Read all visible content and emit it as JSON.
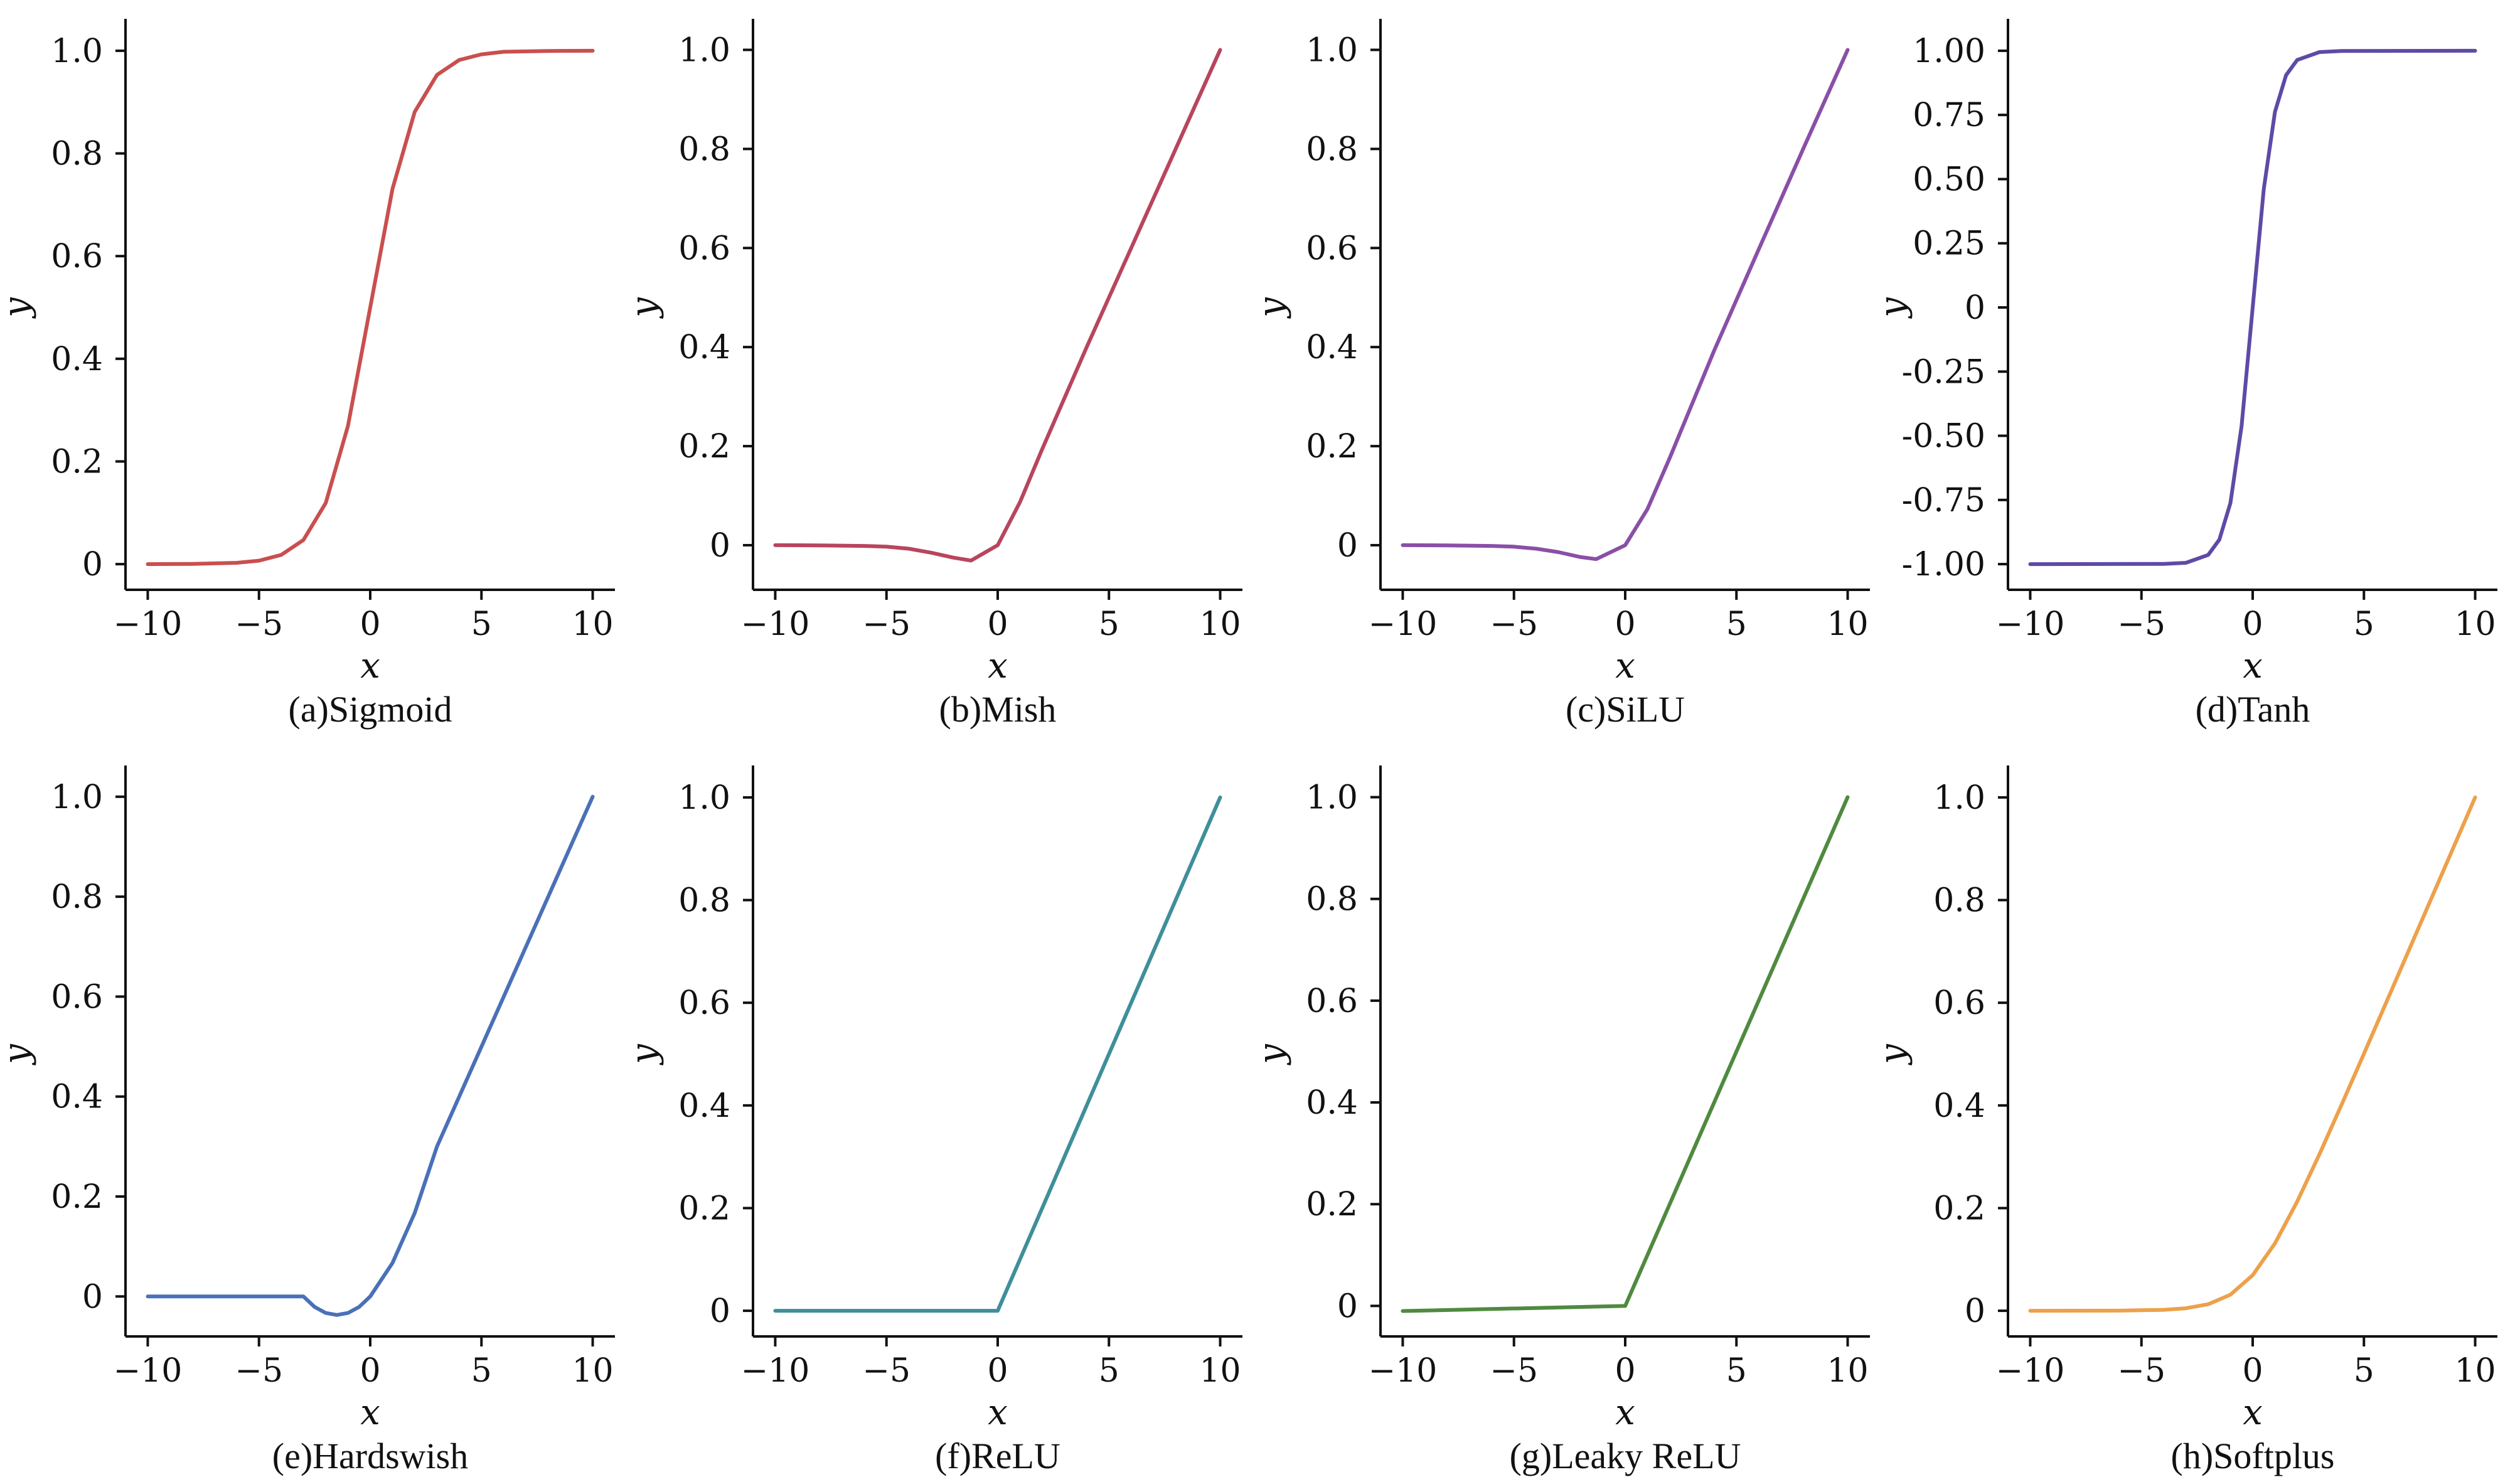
{
  "chart_data": [
    {
      "type": "line",
      "caption": "(a)Sigmoid",
      "color": "#c94f4f",
      "xlabel": "x",
      "ylabel": "y",
      "xlim": [
        -11,
        11
      ],
      "ylim": [
        -0.05,
        1.05
      ],
      "xticks": [
        -10,
        -5,
        0,
        5,
        10
      ],
      "xtick_labels": [
        "−10",
        "−5",
        "0",
        "5",
        "10"
      ],
      "yticks": [
        0,
        0.2,
        0.4,
        0.6,
        0.8,
        1.0
      ],
      "ytick_labels": [
        "0",
        "0.2",
        "0.4",
        "0.6",
        "0.8",
        "1.0"
      ],
      "series": [
        {
          "x": [
            -10,
            -8,
            -6,
            -5,
            -4,
            -3,
            -2,
            -1,
            0,
            1,
            2,
            3,
            4,
            5,
            6,
            8,
            10
          ],
          "y": [
            0.0,
            0.0003,
            0.0025,
            0.0067,
            0.018,
            0.047,
            0.119,
            0.269,
            0.5,
            0.731,
            0.881,
            0.953,
            0.982,
            0.993,
            0.998,
            0.9997,
            1.0
          ]
        }
      ]
    },
    {
      "type": "line",
      "caption": "(b)Mish",
      "color": "#b8455e",
      "xlabel": "x",
      "ylabel": "y",
      "xlim": [
        -11,
        11
      ],
      "ylim": [
        -0.09,
        1.05
      ],
      "xticks": [
        -10,
        -5,
        0,
        5,
        10
      ],
      "xtick_labels": [
        "−10",
        "−5",
        "0",
        "5",
        "10"
      ],
      "yticks": [
        0,
        0.2,
        0.4,
        0.6,
        0.8,
        1.0
      ],
      "ytick_labels": [
        "0",
        "0.2",
        "0.4",
        "0.6",
        "0.8",
        "1.0"
      ],
      "series": [
        {
          "x": [
            -10,
            -8,
            -6,
            -5,
            -4,
            -3,
            -2,
            -1.2,
            0,
            1,
            2,
            4,
            6,
            8,
            10
          ],
          "y": [
            0.0,
            -0.0003,
            -0.0015,
            -0.003,
            -0.007,
            -0.015,
            -0.025,
            -0.031,
            0.0,
            0.087,
            0.194,
            0.4,
            0.6,
            0.8,
            1.0
          ]
        }
      ]
    },
    {
      "type": "line",
      "caption": "(c)SiLU",
      "color": "#8a4fa6",
      "xlabel": "x",
      "ylabel": "y",
      "xlim": [
        -11,
        11
      ],
      "ylim": [
        -0.09,
        1.05
      ],
      "xticks": [
        -10,
        -5,
        0,
        5,
        10
      ],
      "xtick_labels": [
        "−10",
        "−5",
        "0",
        "5",
        "10"
      ],
      "yticks": [
        0,
        0.2,
        0.4,
        0.6,
        0.8,
        1.0
      ],
      "ytick_labels": [
        "0",
        "0.2",
        "0.4",
        "0.6",
        "0.8",
        "1.0"
      ],
      "series": [
        {
          "x": [
            -10,
            -8,
            -6,
            -5,
            -4,
            -3,
            -2,
            -1.3,
            0,
            1,
            2,
            4,
            6,
            8,
            10
          ],
          "y": [
            0.0,
            -0.0003,
            -0.0015,
            -0.003,
            -0.007,
            -0.014,
            -0.024,
            -0.028,
            0.0,
            0.073,
            0.176,
            0.393,
            0.597,
            0.8,
            1.0
          ]
        }
      ]
    },
    {
      "type": "line",
      "caption": "(d)Tanh",
      "color": "#5e4aa6",
      "xlabel": "x",
      "ylabel": "y",
      "xlim": [
        -11,
        11
      ],
      "ylim": [
        -1.1,
        1.1
      ],
      "xticks": [
        -10,
        -5,
        0,
        5,
        10
      ],
      "xtick_labels": [
        "−10",
        "−5",
        "0",
        "5",
        "10"
      ],
      "yticks": [
        -1.0,
        -0.75,
        -0.5,
        -0.25,
        0,
        0.25,
        0.5,
        0.75,
        1.0
      ],
      "ytick_labels": [
        "-1.00",
        "-0.75",
        "-0.50",
        "-0.25",
        "0",
        "0.25",
        "0.50",
        "0.75",
        "1.00"
      ],
      "series": [
        {
          "x": [
            -10,
            -4,
            -3,
            -2,
            -1.5,
            -1,
            -0.5,
            0,
            0.5,
            1,
            1.5,
            2,
            3,
            4,
            10
          ],
          "y": [
            -1.0,
            -0.999,
            -0.995,
            -0.964,
            -0.905,
            -0.762,
            -0.462,
            0.0,
            0.462,
            0.762,
            0.905,
            0.964,
            0.995,
            0.999,
            1.0
          ]
        }
      ]
    },
    {
      "type": "line",
      "caption": "(e)Hardswish",
      "color": "#4a70b8",
      "xlabel": "x",
      "ylabel": "y",
      "xlim": [
        -11,
        11
      ],
      "ylim": [
        -0.08,
        1.05
      ],
      "xticks": [
        -10,
        -5,
        0,
        5,
        10
      ],
      "xtick_labels": [
        "−10",
        "−5",
        "0",
        "5",
        "10"
      ],
      "yticks": [
        0,
        0.2,
        0.4,
        0.6,
        0.8,
        1.0
      ],
      "ytick_labels": [
        "0",
        "0.2",
        "0.4",
        "0.6",
        "0.8",
        "1.0"
      ],
      "series": [
        {
          "x": [
            -10,
            -3,
            -2.5,
            -2,
            -1.5,
            -1,
            -0.5,
            0,
            1,
            2,
            3,
            5,
            7,
            10
          ],
          "y": [
            0.0,
            0.0,
            -0.021,
            -0.033,
            -0.037,
            -0.033,
            -0.021,
            0.0,
            0.067,
            0.167,
            0.3,
            0.5,
            0.7,
            1.0
          ]
        }
      ]
    },
    {
      "type": "line",
      "caption": "(f)ReLU",
      "color": "#3f8f9a",
      "xlabel": "x",
      "ylabel": "y",
      "xlim": [
        -11,
        11
      ],
      "ylim": [
        -0.05,
        1.05
      ],
      "xticks": [
        -10,
        -5,
        0,
        5,
        10
      ],
      "xtick_labels": [
        "−10",
        "−5",
        "0",
        "5",
        "10"
      ],
      "yticks": [
        0,
        0.2,
        0.4,
        0.6,
        0.8,
        1.0
      ],
      "ytick_labels": [
        "0",
        "0.2",
        "0.4",
        "0.6",
        "0.8",
        "1.0"
      ],
      "series": [
        {
          "x": [
            -10,
            0,
            10
          ],
          "y": [
            0.0,
            0.0,
            1.0
          ]
        }
      ]
    },
    {
      "type": "line",
      "caption": "(g)Leaky ReLU",
      "color": "#4f8a3f",
      "xlabel": "x",
      "ylabel": "y",
      "xlim": [
        -11,
        11
      ],
      "ylim": [
        -0.06,
        1.05
      ],
      "xticks": [
        -10,
        -5,
        0,
        5,
        10
      ],
      "xtick_labels": [
        "−10",
        "−5",
        "0",
        "5",
        "10"
      ],
      "yticks": [
        0,
        0.2,
        0.4,
        0.6,
        0.8,
        1.0
      ],
      "ytick_labels": [
        "0",
        "0.2",
        "0.4",
        "0.6",
        "0.8",
        "1.0"
      ],
      "series": [
        {
          "x": [
            -10,
            0,
            10
          ],
          "y": [
            -0.01,
            0.0,
            1.0
          ]
        }
      ]
    },
    {
      "type": "line",
      "caption": "(h)Softplus",
      "color": "#eca14a",
      "xlabel": "x",
      "ylabel": "y",
      "xlim": [
        -11,
        11
      ],
      "ylim": [
        -0.05,
        1.05
      ],
      "xticks": [
        -10,
        -5,
        0,
        5,
        10
      ],
      "xtick_labels": [
        "−10",
        "−5",
        "0",
        "5",
        "10"
      ],
      "yticks": [
        0,
        0.2,
        0.4,
        0.6,
        0.8,
        1.0
      ],
      "ytick_labels": [
        "0",
        "0.2",
        "0.4",
        "0.6",
        "0.8",
        "1.0"
      ],
      "series": [
        {
          "x": [
            -10,
            -6,
            -4,
            -3,
            -2,
            -1,
            0,
            1,
            2,
            3,
            4,
            5,
            6,
            8,
            10
          ],
          "y": [
            0.0,
            0.0002,
            0.0018,
            0.0049,
            0.0127,
            0.0313,
            0.0693,
            0.1313,
            0.2127,
            0.3049,
            0.4018,
            0.5007,
            0.6002,
            0.8,
            1.0
          ]
        }
      ]
    }
  ]
}
